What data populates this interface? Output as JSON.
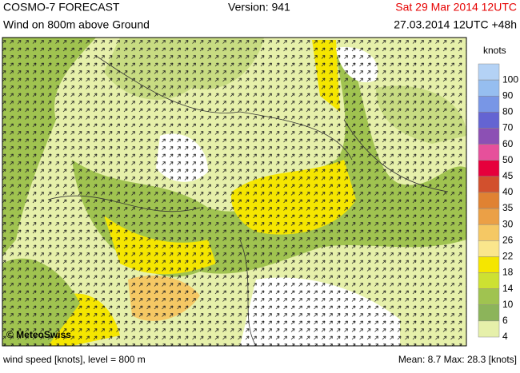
{
  "header": {
    "title": "COSMO-7 FORECAST",
    "version": "Version: 941",
    "valid": "Sat 29 Mar 2014 12UTC",
    "subtitle": "Wind on 800m above Ground",
    "run": "27.03.2014 12UTC +48h"
  },
  "legend": {
    "title": "knots",
    "items": [
      {
        "label": "100",
        "color": "#b4d2f5"
      },
      {
        "label": "90",
        "color": "#96bef0"
      },
      {
        "label": "80",
        "color": "#7896e6"
      },
      {
        "label": "70",
        "color": "#6464d2"
      },
      {
        "label": "60",
        "color": "#8c50b4"
      },
      {
        "label": "50",
        "color": "#e6509b"
      },
      {
        "label": "45",
        "color": "#e6003c"
      },
      {
        "label": "40",
        "color": "#d2502d"
      },
      {
        "label": "35",
        "color": "#e08232"
      },
      {
        "label": "30",
        "color": "#eba046"
      },
      {
        "label": "26",
        "color": "#f5c864"
      },
      {
        "label": "22",
        "color": "#fae68c"
      },
      {
        "label": "18",
        "color": "#f5e600"
      },
      {
        "label": "14",
        "color": "#cde132"
      },
      {
        "label": "10",
        "color": "#a0c350"
      },
      {
        "label": "6",
        "color": "#8cb45a"
      },
      {
        "label": "4",
        "color": "#e6f0aa"
      }
    ]
  },
  "copyright": "© MeteoSwiss",
  "footer": {
    "left": "wind speed [knots], level = 800 m",
    "right": "Mean:  8.7 Max:  28.3 [knots]"
  }
}
